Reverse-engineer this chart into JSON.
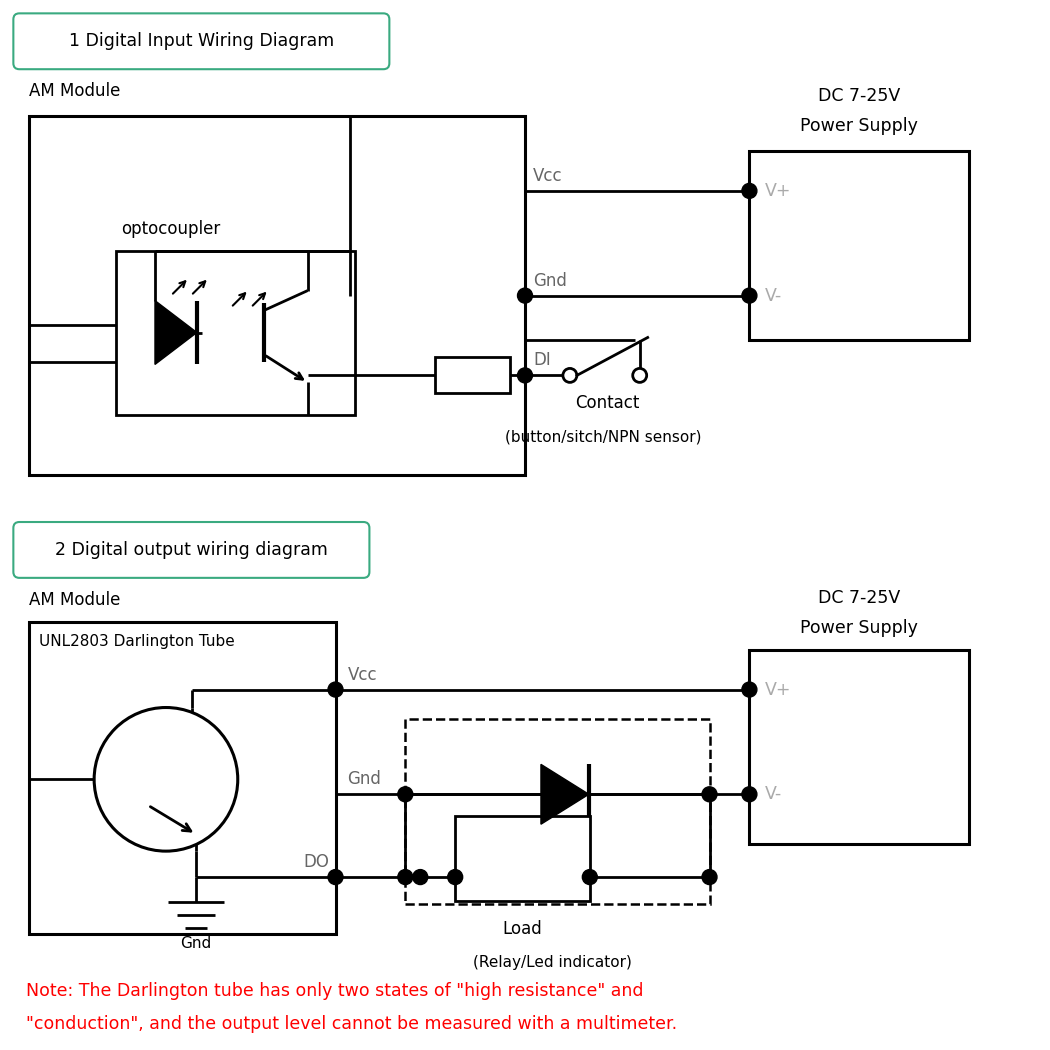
{
  "bg_color": "#ffffff",
  "title1": "1 Digital Input Wiring Diagram",
  "title2": "2 Digital output wiring diagram",
  "am_module": "AM Module",
  "vcc_label": "Vcc",
  "gnd_label": "Gnd",
  "di_label": "DI",
  "do_label": "DO",
  "vplus_label": "V+",
  "vminus_label": "V-",
  "dc_label1": "DC 7-25V",
  "ps_label1": "Power Supply",
  "dc_label2": "DC 7-25V",
  "ps_label2": "Power Supply",
  "optocoupler_label": "optocoupler",
  "contact_label": "Contact",
  "contact_sub": "(button/sitch/NPN sensor)",
  "darlington_label": "UNL2803 Darlington Tube",
  "gnd2_label": "Gnd",
  "load_label": "Load",
  "relay_label": "(Relay/Led indicator)",
  "note_line1": "Note: The Darlington tube has only two states of \"high resistance\" and",
  "note_line2": "\"conduction\", and the output level cannot be measured with a multimeter.",
  "note_color": "#ff0000",
  "line_color": "#000000",
  "text_color": "#000000",
  "border_color": "#3aaa80"
}
